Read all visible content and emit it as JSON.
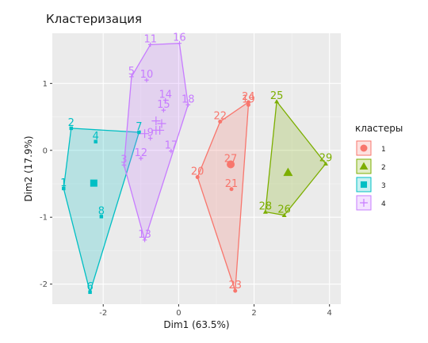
{
  "chart_data": {
    "type": "scatter",
    "title": "Кластеризация",
    "xlabel": "Dim1 (63.5%)",
    "ylabel": "Dim2 (17.9%)",
    "xlim": [
      -3.35,
      4.3
    ],
    "ylim": [
      -2.3,
      1.75
    ],
    "x_ticks": [
      -2,
      0,
      2,
      4
    ],
    "y_ticks": [
      -2,
      -1,
      0,
      1
    ],
    "grid": true,
    "legend": {
      "title": "кластеры",
      "position": "right"
    },
    "colors": {
      "1": "#F8766D",
      "2": "#7CAE00",
      "3": "#00BFC4",
      "4": "#C77CFF"
    },
    "clusters": [
      {
        "name": "1",
        "points": [
          {
            "label": "19",
            "x": 1.85,
            "y": 0.68
          },
          {
            "label": "20",
            "x": 0.5,
            "y": -0.4
          },
          {
            "label": "21",
            "x": 1.4,
            "y": -0.58
          },
          {
            "label": "22",
            "x": 1.1,
            "y": 0.43
          },
          {
            "label": "23",
            "x": 1.5,
            "y": -2.1
          },
          {
            "label": "24",
            "x": 1.85,
            "y": 0.72
          },
          {
            "label": "27",
            "x": 1.38,
            "y": -0.21
          }
        ],
        "hull": [
          "19",
          "24",
          "22",
          "20",
          "23"
        ],
        "centroid": {
          "x": 1.38,
          "y": -0.21
        }
      },
      {
        "name": "2",
        "points": [
          {
            "label": "25",
            "x": 2.6,
            "y": 0.73
          },
          {
            "label": "26",
            "x": 2.8,
            "y": -0.97
          },
          {
            "label": "28",
            "x": 2.3,
            "y": -0.92
          },
          {
            "label": "29",
            "x": 3.9,
            "y": -0.2
          }
        ],
        "hull": [
          "25",
          "28",
          "26",
          "29"
        ],
        "centroid": {
          "x": 2.9,
          "y": -0.33
        }
      },
      {
        "name": "3",
        "points": [
          {
            "label": "1",
            "x": -3.05,
            "y": -0.57
          },
          {
            "label": "2",
            "x": -2.85,
            "y": 0.33
          },
          {
            "label": "4",
            "x": -2.2,
            "y": 0.13
          },
          {
            "label": "6",
            "x": -2.35,
            "y": -2.12
          },
          {
            "label": "7",
            "x": -1.05,
            "y": 0.27
          },
          {
            "label": "8",
            "x": -2.05,
            "y": -0.99
          }
        ],
        "hull": [
          "2",
          "7",
          "6",
          "1"
        ],
        "centroid": {
          "x": -2.25,
          "y": -0.49
        }
      },
      {
        "name": "4",
        "points": [
          {
            "label": "3",
            "x": -1.45,
            "y": -0.22
          },
          {
            "label": "5",
            "x": -1.25,
            "y": 1.1
          },
          {
            "label": "9",
            "x": -0.75,
            "y": 0.18
          },
          {
            "label": "10",
            "x": -0.85,
            "y": 1.05
          },
          {
            "label": "11",
            "x": -0.75,
            "y": 1.58
          },
          {
            "label": "12",
            "x": -1.0,
            "y": -0.12
          },
          {
            "label": "13",
            "x": -0.9,
            "y": -1.34
          },
          {
            "label": "14",
            "x": -0.35,
            "y": 0.75
          },
          {
            "label": "15",
            "x": -0.4,
            "y": 0.6
          },
          {
            "label": "16",
            "x": 0.02,
            "y": 1.6
          },
          {
            "label": "17",
            "x": -0.2,
            "y": -0.01
          },
          {
            "label": "18",
            "x": 0.25,
            "y": 0.68
          }
        ],
        "hull": [
          "11",
          "16",
          "18",
          "13",
          "3",
          "5"
        ],
        "centroid": {
          "x": -0.6,
          "y": 0.44
        }
      }
    ],
    "extra_markers": [
      {
        "cluster": "4",
        "x": -0.6,
        "y": 0.3
      },
      {
        "cluster": "4",
        "x": -0.45,
        "y": 0.4
      },
      {
        "cluster": "4",
        "x": -0.5,
        "y": 0.3
      },
      {
        "cluster": "4",
        "x": -0.9,
        "y": 0.25
      }
    ]
  }
}
